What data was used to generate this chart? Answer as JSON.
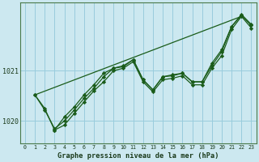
{
  "title": "Graphe pression niveau de la mer (hPa)",
  "background_color": "#cce8f0",
  "grid_color": "#99ccdd",
  "line_color": "#1a5c1a",
  "marker_color": "#1a5c1a",
  "xlim": [
    -0.5,
    23.5
  ],
  "ylim": [
    1019.55,
    1022.35
  ],
  "yticks": [
    1020,
    1021
  ],
  "xticks": [
    0,
    1,
    2,
    3,
    4,
    5,
    6,
    7,
    8,
    9,
    10,
    11,
    12,
    13,
    14,
    15,
    16,
    17,
    18,
    19,
    20,
    21,
    22,
    23
  ],
  "lines": [
    {
      "x": [
        1,
        2,
        3,
        4,
        5,
        6,
        7,
        8,
        9,
        10,
        11,
        12,
        13,
        14,
        15,
        16,
        17,
        18,
        19,
        20,
        21,
        22,
        23
      ],
      "y": [
        1020.52,
        1020.25,
        1019.82,
        1019.92,
        1020.15,
        1020.38,
        1020.6,
        1020.78,
        1021.0,
        1021.05,
        1021.18,
        1020.78,
        1020.58,
        1020.82,
        1020.85,
        1020.9,
        1020.72,
        1020.72,
        1021.05,
        1021.3,
        1021.82,
        1022.08,
        1021.85
      ]
    },
    {
      "x": [
        1,
        2,
        3,
        4,
        5,
        6,
        7,
        8,
        9,
        10,
        11,
        12,
        13,
        14,
        15,
        16,
        17,
        18,
        19,
        20,
        21,
        22,
        23
      ],
      "y": [
        1020.52,
        1020.22,
        1019.85,
        1020.0,
        1020.22,
        1020.45,
        1020.65,
        1020.88,
        1021.05,
        1021.1,
        1021.22,
        1020.82,
        1020.62,
        1020.88,
        1020.9,
        1020.95,
        1020.78,
        1020.78,
        1021.1,
        1021.38,
        1021.88,
        1022.1,
        1021.9
      ]
    },
    {
      "x": [
        3,
        4,
        5,
        6,
        7,
        8,
        9,
        10,
        11,
        12,
        13,
        14,
        15,
        16,
        17,
        18,
        19,
        20,
        21,
        22,
        23
      ],
      "y": [
        1019.82,
        1020.08,
        1020.28,
        1020.52,
        1020.72,
        1020.95,
        1021.05,
        1021.08,
        1021.22,
        1020.82,
        1020.62,
        1020.88,
        1020.92,
        1020.95,
        1020.78,
        1020.78,
        1021.15,
        1021.42,
        1021.88,
        1022.12,
        1021.92
      ]
    },
    {
      "x": [
        1,
        22
      ],
      "y": [
        1020.52,
        1022.08
      ],
      "no_marker": true
    }
  ]
}
